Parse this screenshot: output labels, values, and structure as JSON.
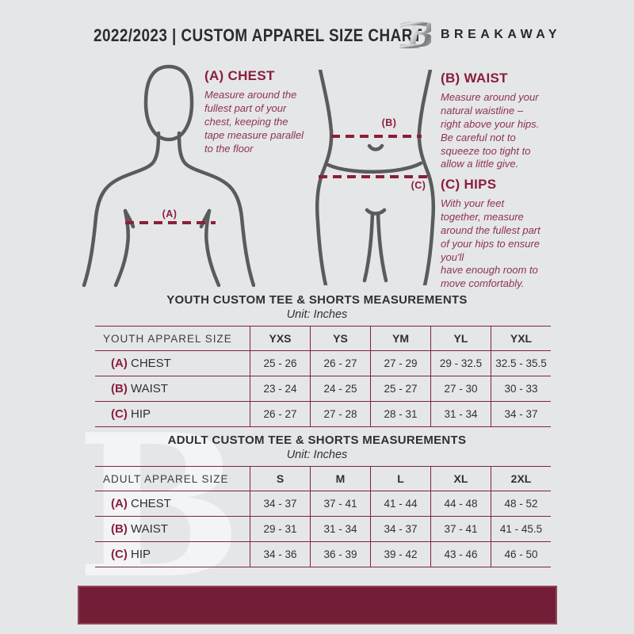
{
  "colors": {
    "background": "#e5e6e8",
    "accent_maroon": "#731e36",
    "table_line_maroon": "#7d2342",
    "heading_maroon": "#8a1e3d",
    "body_text_maroon": "#8d3351",
    "dark_text": "#2f3032",
    "figure_stroke": "#5a5b5d"
  },
  "header": {
    "title": "2022/2023  |  CUSTOM APPAREL SIZE CHART",
    "brand": "BREAKAWAY",
    "logo_icon": "breakaway-b-logo"
  },
  "watermark": {
    "letter": "B"
  },
  "measure_guide": {
    "figure_labels": {
      "chest": "(A)",
      "waist": "(B)",
      "hip": "(C)"
    },
    "sections": [
      {
        "heading": "(A) CHEST",
        "body": "Measure around the\nfullest part of your\nchest, keeping the\ntape measure parallel\nto the floor"
      },
      {
        "heading": "(B) WAIST",
        "body": "Measure around your\nnatural waistline –\nright above your hips.\nBe careful not to\nsqueeze too tight to\nallow a little give."
      },
      {
        "heading": "(C) HIPS",
        "body": "With your feet\ntogether, measure\naround the fullest part\nof your hips to ensure\nyou'll\nhave enough room to\nmove comfortably."
      }
    ]
  },
  "tables": [
    {
      "title": "YOUTH CUSTOM TEE & SHORTS MEASUREMENTS",
      "unit": "Unit: Inches",
      "size_label": "YOUTH APPAREL SIZE",
      "sizes": [
        "YXS",
        "YS",
        "YM",
        "YL",
        "YXL"
      ],
      "rows": [
        {
          "prefix": "(A)",
          "label": "CHEST",
          "values": [
            "25 - 26",
            "26 - 27",
            "27 - 29",
            "29 - 32.5",
            "32.5 - 35.5"
          ]
        },
        {
          "prefix": "(B)",
          "label": "WAIST",
          "values": [
            "23 - 24",
            "24 - 25",
            "25 - 27",
            "27 - 30",
            "30 - 33"
          ]
        },
        {
          "prefix": "(C)",
          "label": "HIP",
          "values": [
            "26 - 27",
            "27 - 28",
            "28 - 31",
            "31 - 34",
            "34 - 37"
          ]
        }
      ]
    },
    {
      "title": "ADULT CUSTOM TEE & SHORTS MEASUREMENTS",
      "unit": "Unit: Inches",
      "size_label": "ADULT APPAREL SIZE",
      "sizes": [
        "S",
        "M",
        "L",
        "XL",
        "2XL"
      ],
      "rows": [
        {
          "prefix": "(A)",
          "label": "CHEST",
          "values": [
            "34 - 37",
            "37 - 41",
            "41 - 44",
            "44 - 48",
            "48 - 52"
          ]
        },
        {
          "prefix": "(B)",
          "label": "WAIST",
          "values": [
            "29 - 31",
            "31 - 34",
            "34 - 37",
            "37 - 41",
            "41 - 45.5"
          ]
        },
        {
          "prefix": "(C)",
          "label": "HIP",
          "values": [
            "34 - 36",
            "36 - 39",
            "39 - 42",
            "43 - 46",
            "46 - 50"
          ]
        }
      ]
    }
  ]
}
